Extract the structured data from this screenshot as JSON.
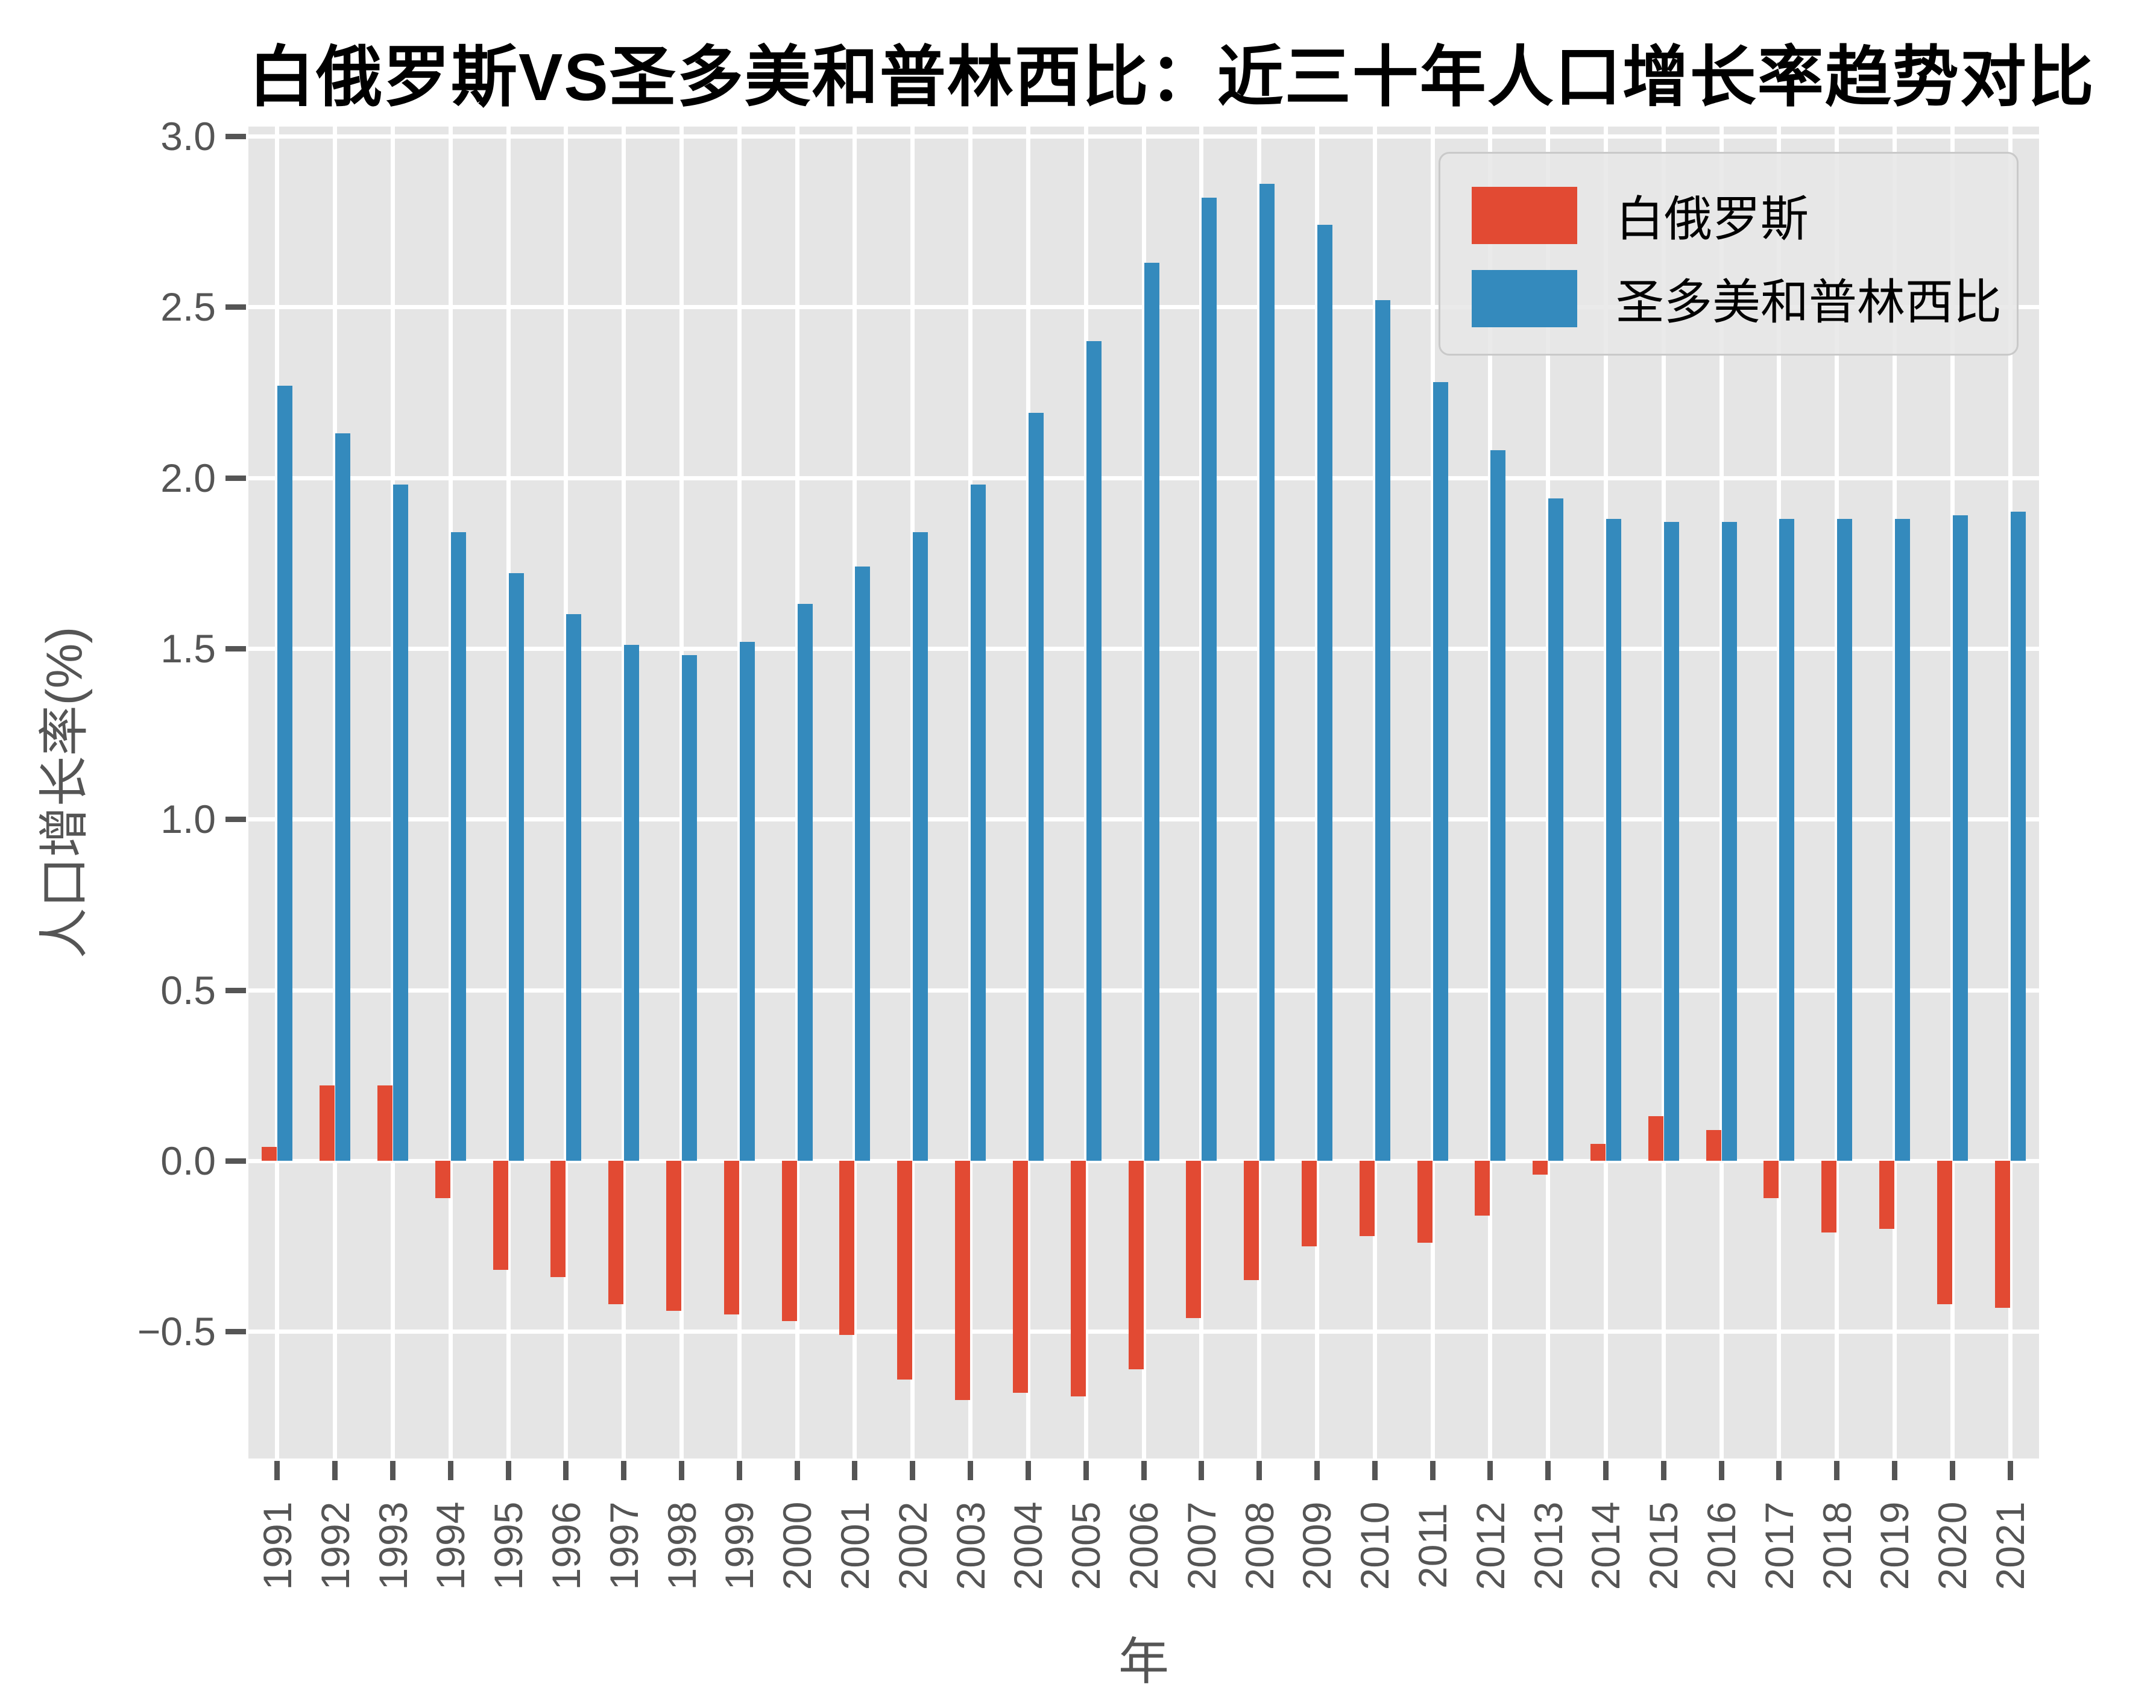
{
  "chart_data": {
    "type": "bar",
    "title": "白俄罗斯VS圣多美和普林西比：近三十年人口增长率趋势对比",
    "xlabel": "年",
    "ylabel": "人口增长率(%)",
    "categories": [
      "1991",
      "1992",
      "1993",
      "1994",
      "1995",
      "1996",
      "1997",
      "1998",
      "1999",
      "2000",
      "2001",
      "2002",
      "2003",
      "2004",
      "2005",
      "2006",
      "2007",
      "2008",
      "2009",
      "2010",
      "2011",
      "2012",
      "2013",
      "2014",
      "2015",
      "2016",
      "2017",
      "2018",
      "2019",
      "2020",
      "2021"
    ],
    "series": [
      {
        "name": "白俄罗斯",
        "color": "#E24A33",
        "values": [
          0.04,
          0.22,
          0.22,
          -0.11,
          -0.32,
          -0.34,
          -0.42,
          -0.44,
          -0.45,
          -0.47,
          -0.51,
          -0.64,
          -0.7,
          -0.68,
          -0.69,
          -0.61,
          -0.46,
          -0.35,
          -0.25,
          -0.22,
          -0.24,
          -0.16,
          -0.04,
          0.05,
          0.13,
          0.09,
          -0.11,
          -0.21,
          -0.2,
          -0.42,
          -0.43
        ]
      },
      {
        "name": "圣多美和普林西比",
        "color": "#348ABD",
        "values": [
          2.27,
          2.13,
          1.98,
          1.84,
          1.72,
          1.6,
          1.51,
          1.48,
          1.52,
          1.63,
          1.74,
          1.84,
          1.98,
          2.19,
          2.4,
          2.63,
          2.82,
          2.86,
          2.74,
          2.52,
          2.28,
          2.08,
          1.94,
          1.88,
          1.87,
          1.87,
          1.88,
          1.88,
          1.88,
          1.89,
          1.9
        ]
      }
    ],
    "y_ticks": {
      "values": [
        3.0,
        2.5,
        2.0,
        1.5,
        1.0,
        0.5,
        0.0,
        -0.5
      ],
      "labels": [
        "3.0",
        "2.5",
        "2.0",
        "1.5",
        "1.0",
        "0.5",
        "0.0",
        "−0.5"
      ]
    },
    "ylim": [
      -0.88,
      3.04
    ],
    "grid": true,
    "legend_position": "upper right",
    "colors": {
      "plot_background": "#E5E5E5",
      "figure_background": "#FFFFFF",
      "grid_color": "#FFFFFF",
      "tick_color": "#555555",
      "title_color": "#000000"
    }
  }
}
